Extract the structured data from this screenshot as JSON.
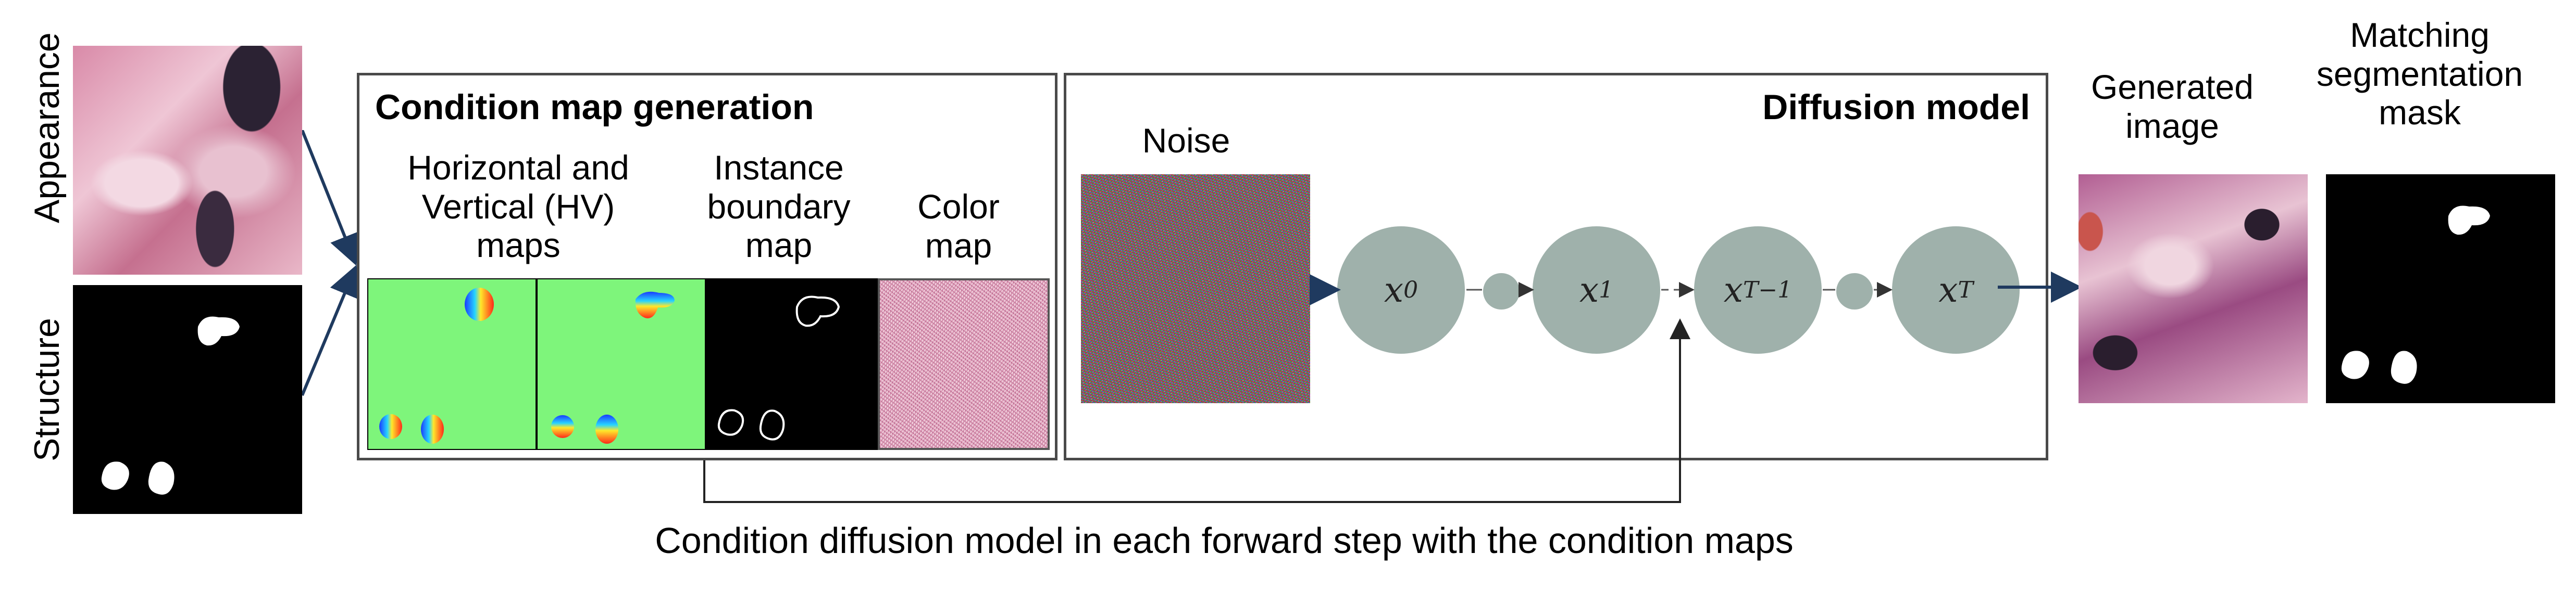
{
  "left_inputs": {
    "appearance_label": "Appearance",
    "structure_label": "Structure"
  },
  "condition_panel": {
    "title": "Condition map generation",
    "hv_label": "Horizontal and Vertical (HV) maps",
    "boundary_label": "Instance boundary map",
    "color_label": "Color map"
  },
  "diffusion_panel": {
    "title": "Diffusion model",
    "noise_label": "Noise",
    "states": [
      {
        "var": "x",
        "sub": "0"
      },
      {
        "var": "x",
        "sub": "1"
      },
      {
        "var": "x",
        "sub": "T−1"
      },
      {
        "var": "x",
        "sub": "T"
      }
    ]
  },
  "outputs": {
    "generated_label": "Generated image",
    "mask_label": "Matching segmentation mask"
  },
  "caption": "Condition diffusion model in each forward step with the condition maps",
  "colors": {
    "hv_green": "#7ef57b",
    "node_gray": "#9fb1ab",
    "arrow_blue": "#1f3a5f",
    "frame_gray": "#4a4a4a"
  }
}
